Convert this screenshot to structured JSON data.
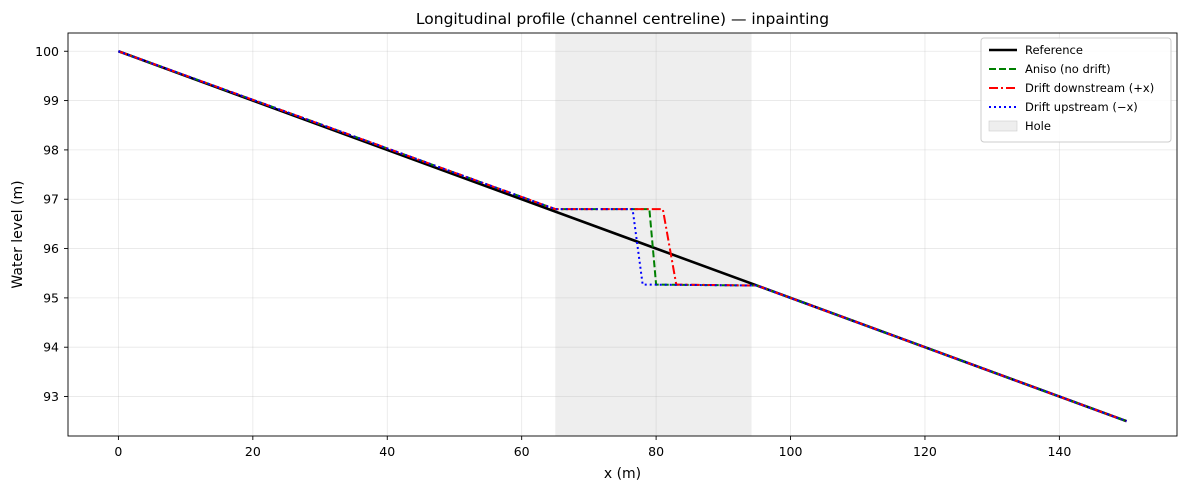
{
  "chart_data": {
    "type": "line",
    "title": "Longitudinal profile (channel centreline) — inpainting",
    "xlabel": "x (m)",
    "ylabel": "Water level (m)",
    "xlim": [
      -7.5,
      157.5
    ],
    "ylim": [
      92.2,
      100.37
    ],
    "xticks": [
      0,
      20,
      40,
      60,
      80,
      100,
      120,
      140
    ],
    "yticks": [
      93,
      94,
      95,
      96,
      97,
      98,
      99,
      100
    ],
    "grid": true,
    "legend_position": "top-right",
    "hole": {
      "label": "Hole",
      "x_start": 65,
      "x_end": 94.2,
      "color": "#d9d9d9"
    },
    "series": [
      {
        "name": "Reference",
        "color": "#000000",
        "style": "solid",
        "x": [
          0,
          150
        ],
        "y": [
          100,
          92.5
        ]
      },
      {
        "name": "Aniso (no drift)",
        "color": "#008000",
        "style": "dashed",
        "x": [
          0,
          65,
          79,
          80,
          95,
          150
        ],
        "y": [
          100,
          96.8,
          96.8,
          95.27,
          95.25,
          92.5
        ]
      },
      {
        "name": "Drift downstream (+x)",
        "color": "#ff0000",
        "style": "dashdot",
        "x": [
          0,
          65,
          81,
          83,
          95,
          150
        ],
        "y": [
          100,
          96.8,
          96.8,
          95.27,
          95.25,
          92.5
        ]
      },
      {
        "name": "Drift upstream (−x)",
        "color": "#0000ff",
        "style": "dotted",
        "x": [
          0,
          65,
          76.5,
          78,
          95,
          150
        ],
        "y": [
          100,
          96.8,
          96.8,
          95.27,
          95.25,
          92.5
        ]
      }
    ]
  }
}
